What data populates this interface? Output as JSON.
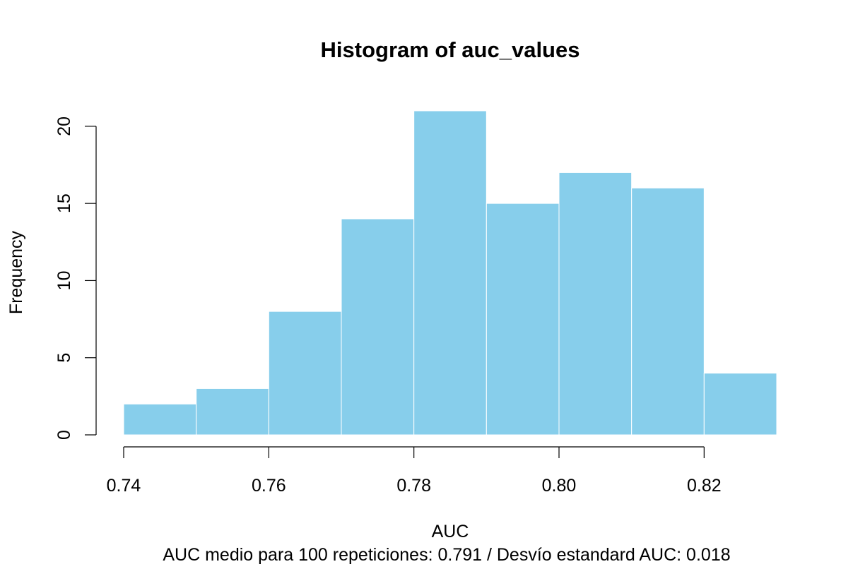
{
  "chart_data": {
    "type": "bar",
    "title": "Histogram of auc_values",
    "xlabel": "AUC",
    "ylabel": "Frequency",
    "subtitle": "AUC medio para 100 repeticiones: 0.791 / Desvío estandard AUC: 0.018",
    "bins": [
      {
        "x0": 0.74,
        "x1": 0.75,
        "count": 2
      },
      {
        "x0": 0.75,
        "x1": 0.76,
        "count": 3
      },
      {
        "x0": 0.76,
        "x1": 0.77,
        "count": 8
      },
      {
        "x0": 0.77,
        "x1": 0.78,
        "count": 14
      },
      {
        "x0": 0.78,
        "x1": 0.79,
        "count": 21
      },
      {
        "x0": 0.79,
        "x1": 0.8,
        "count": 15
      },
      {
        "x0": 0.8,
        "x1": 0.81,
        "count": 17
      },
      {
        "x0": 0.81,
        "x1": 0.82,
        "count": 16
      },
      {
        "x0": 0.82,
        "x1": 0.83,
        "count": 4
      }
    ],
    "xlim": [
      0.74,
      0.83
    ],
    "ylim": [
      0,
      21
    ],
    "x_ticks": [
      0.74,
      0.76,
      0.78,
      0.8,
      0.82
    ],
    "x_tick_labels": [
      "0.74",
      "0.76",
      "0.78",
      "0.80",
      "0.82"
    ],
    "y_ticks": [
      0,
      5,
      10,
      15,
      20
    ],
    "y_tick_labels": [
      "0",
      "5",
      "10",
      "15",
      "20"
    ],
    "bar_color": "#87CEEB",
    "bar_border_color": "#ffffff",
    "grid": false,
    "legend": "none"
  }
}
